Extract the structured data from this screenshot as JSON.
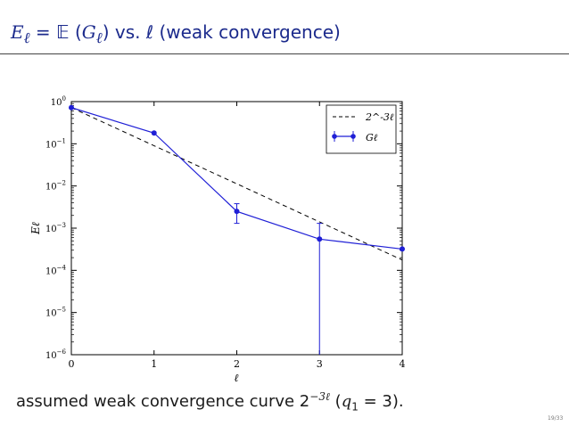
{
  "slide": {
    "title_pre": "E",
    "title_sub": "ℓ",
    "title_eq": " = 𝔼 (",
    "title_g": "G",
    "title_gsub": "ℓ",
    "title_post": ") vs.  ℓ (weak convergence)",
    "bottom_pre": "assumed weak convergence curve 2",
    "bottom_sup": "−3ℓ",
    "bottom_mid": " (",
    "bottom_q": "q",
    "bottom_qsub": "1",
    "bottom_post": " = 3).",
    "page_number": "19/33"
  },
  "chart_data": {
    "type": "line",
    "xlabel": "ℓ",
    "ylabel": "Eℓ",
    "xlim": [
      0,
      4
    ],
    "ylim": [
      1e-06,
      1
    ],
    "yscale": "log",
    "x_ticks": [
      "0",
      "1",
      "2",
      "3",
      "4"
    ],
    "y_ticks": [
      "10^0",
      "10^-1",
      "10^-2",
      "10^-3",
      "10^-4",
      "10^-5",
      "10^-6"
    ],
    "grid": false,
    "legend_position": "top-right",
    "series": [
      {
        "name": "2^-3ℓ",
        "style": "dashed",
        "color": "#000000",
        "x": [
          0,
          4
        ],
        "y": [
          0.72,
          0.000176
        ]
      },
      {
        "name": "Gℓ",
        "style": "solid-markers-errorbars",
        "color": "#1f1fd6",
        "x": [
          0,
          1,
          2,
          3,
          4
        ],
        "y": [
          0.72,
          0.18,
          0.0025,
          0.00055,
          0.00032
        ],
        "err_low": [
          0.72,
          0.18,
          0.0013,
          1e-07,
          0.00032
        ],
        "err_high": [
          0.72,
          0.18,
          0.0038,
          0.0013,
          0.00032
        ]
      }
    ]
  }
}
